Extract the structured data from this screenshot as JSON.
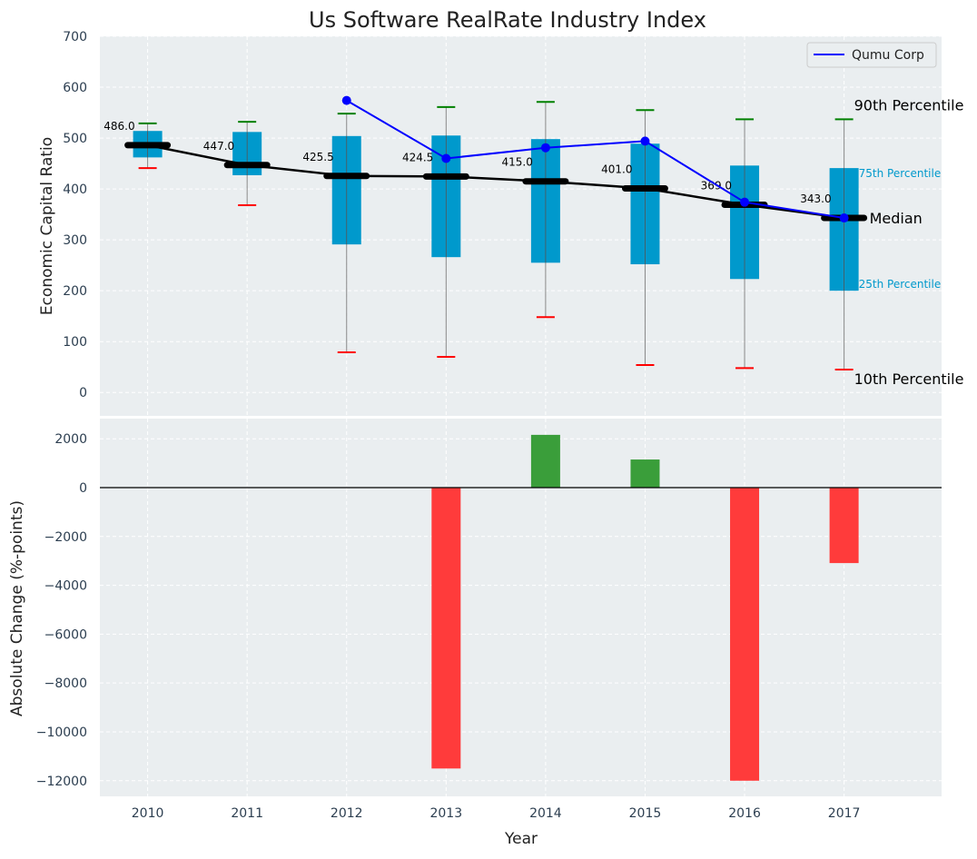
{
  "chart_data": [
    {
      "type": "box",
      "title": "Us Software RealRate Industry Index",
      "ylabel": "Economic Capital Ratio",
      "xlabel": "",
      "ylim": [
        -46,
        700
      ],
      "xlim": [
        2009.52,
        2017.98
      ],
      "yticks": [
        0,
        100,
        200,
        300,
        400,
        500,
        600,
        700
      ],
      "categories": [
        "2010",
        "2011",
        "2012",
        "2013",
        "2014",
        "2015",
        "2016",
        "2017"
      ],
      "p90": [
        529,
        532,
        548,
        561,
        571,
        555,
        537,
        537
      ],
      "p75": [
        514,
        512,
        504,
        505,
        498,
        489,
        446,
        441
      ],
      "median": [
        486.0,
        447.0,
        425.5,
        424.5,
        415.0,
        401.0,
        369.0,
        343.0
      ],
      "median_labels": [
        "486.0",
        "447.0",
        "425.5",
        "424.5",
        "415.0",
        "401.0",
        "369.0",
        "343.0"
      ],
      "p25": [
        462,
        427,
        291,
        266,
        255,
        252,
        223,
        200
      ],
      "p10": [
        441,
        368,
        79,
        70,
        148,
        54,
        48,
        45
      ],
      "series": [
        {
          "name": "Qumu Corp",
          "values": [
            null,
            null,
            574,
            460,
            481,
            494,
            374,
            343
          ]
        }
      ],
      "legend": "top-right",
      "annotations": {
        "p90": "90th Percentile",
        "p75": "75th Percentile",
        "median": "Median",
        "p25": "25th Percentile",
        "p10": "10th Percentile"
      },
      "grid": true
    },
    {
      "type": "bar",
      "ylabel": "Absolute Change (%-points)",
      "xlabel": "Year",
      "categories": [
        "2010",
        "2011",
        "2012",
        "2013",
        "2014",
        "2015",
        "2016",
        "2017"
      ],
      "values": [
        0,
        0,
        0,
        -11500,
        2160,
        1150,
        -12000,
        -3090
      ],
      "ylim": [
        -12640,
        2825
      ],
      "yticks": [
        2000,
        0,
        -2000,
        -4000,
        -6000,
        -8000,
        -10000,
        -12000
      ],
      "ytick_labels": [
        "2000",
        "0",
        "−2000",
        "−4000",
        "−6000",
        "−8000",
        "−10000",
        "−12000"
      ],
      "grid": true
    }
  ],
  "colors": {
    "box": "#0099cc",
    "p90": "#008000",
    "p10": "#ff0000",
    "series": "#0000ff",
    "pos": "#3a9e3a",
    "neg": "#ff3b3b",
    "bg": "#eaeef0"
  }
}
